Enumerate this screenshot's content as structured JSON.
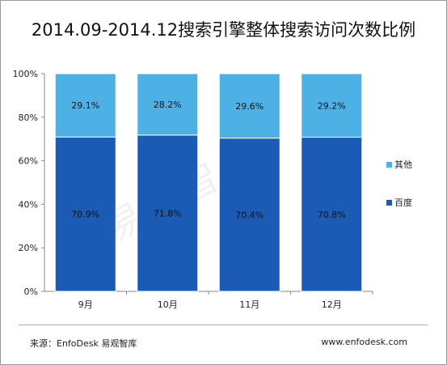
{
  "title": "2014.09-2014.12搜索引擎整体搜索访问次数比例",
  "watermark": "易观智库",
  "footer": {
    "source": "来源：EnfoDesk 易观智库",
    "url": "www.enfodesk.com"
  },
  "chart_data": {
    "type": "bar",
    "stacked": true,
    "percent": true,
    "categories": [
      "9月",
      "10月",
      "11月",
      "12月"
    ],
    "series": [
      {
        "name": "百度",
        "values": [
          70.9,
          71.8,
          70.4,
          70.8
        ],
        "labels": [
          "70.9%",
          "71.8%",
          "70.4%",
          "70.8%"
        ],
        "color": "#1b5bb5"
      },
      {
        "name": "其他",
        "values": [
          29.1,
          28.2,
          29.6,
          29.2
        ],
        "labels": [
          "29.1%",
          "28.2%",
          "29.6%",
          "29.2%"
        ],
        "color": "#4eb1e6"
      }
    ],
    "legend_order": [
      "其他",
      "百度"
    ],
    "ylim": [
      0,
      100
    ],
    "yticks": [
      "0%",
      "20%",
      "40%",
      "60%",
      "80%",
      "100%"
    ],
    "legend_position": "right"
  }
}
